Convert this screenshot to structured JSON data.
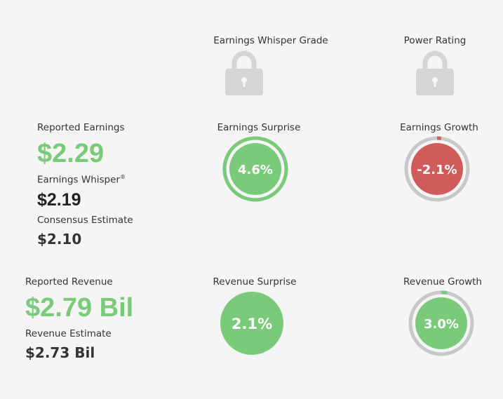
{
  "grades": {
    "whisper_grade_label": "Earnings Whisper Grade",
    "power_rating_label": "Power Rating",
    "icon": "lock-icon"
  },
  "earnings": {
    "reported_label": "Reported Earnings",
    "reported_value": "$2.29",
    "whisper_label": "Earnings Whisper",
    "whisper_reg": "®",
    "whisper_value": "$2.19",
    "consensus_label": "Consensus Estimate",
    "consensus_value": "$2.10",
    "surprise_label": "Earnings Surprise",
    "surprise_value": "4.6%",
    "growth_label": "Earnings Growth",
    "growth_value": "-2.1%"
  },
  "revenue": {
    "reported_label": "Reported Revenue",
    "reported_value": "$2.79 Bil",
    "estimate_label": "Revenue Estimate",
    "estimate_value": "$2.73 Bil",
    "surprise_label": "Revenue Surprise",
    "surprise_value": "2.1%",
    "growth_label": "Revenue Growth",
    "growth_value": "3.0%"
  },
  "gauges": {
    "earnings_surprise_fraction": 1.0,
    "earnings_growth_fraction": 0.021,
    "revenue_growth_fraction": 0.03
  },
  "colors": {
    "positive": "#7acb79",
    "negative": "#d15b5b",
    "track": "#c8c8c8",
    "lock": "#d5d5d5"
  }
}
